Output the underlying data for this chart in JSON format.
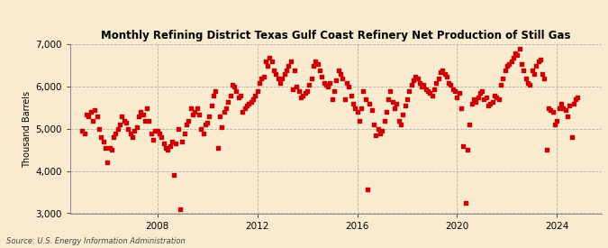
{
  "title": "Monthly Refining District Texas Gulf Coast Refinery Net Production of Still Gas",
  "ylabel": "Thousand Barrels",
  "source": "Source: U.S. Energy Information Administration",
  "background_color": "#faebd0",
  "dot_color": "#cc0000",
  "ylim": [
    3000,
    7000
  ],
  "yticks": [
    3000,
    4000,
    5000,
    6000,
    7000
  ],
  "xlim": [
    2004.5,
    2025.8
  ],
  "xticks_years": [
    2008,
    2012,
    2016,
    2020,
    2024
  ],
  "data": [
    [
      2005.0,
      4950
    ],
    [
      2005.083,
      4900
    ],
    [
      2005.167,
      5350
    ],
    [
      2005.25,
      5300
    ],
    [
      2005.333,
      5400
    ],
    [
      2005.417,
      5200
    ],
    [
      2005.5,
      5450
    ],
    [
      2005.583,
      5300
    ],
    [
      2005.667,
      5000
    ],
    [
      2005.75,
      4800
    ],
    [
      2005.833,
      4700
    ],
    [
      2005.917,
      4550
    ],
    [
      2006.0,
      4200
    ],
    [
      2006.083,
      4550
    ],
    [
      2006.167,
      4500
    ],
    [
      2006.25,
      4800
    ],
    [
      2006.333,
      4900
    ],
    [
      2006.417,
      5000
    ],
    [
      2006.5,
      5100
    ],
    [
      2006.583,
      5300
    ],
    [
      2006.667,
      5200
    ],
    [
      2006.75,
      5150
    ],
    [
      2006.833,
      5000
    ],
    [
      2006.917,
      4900
    ],
    [
      2007.0,
      4800
    ],
    [
      2007.083,
      4950
    ],
    [
      2007.167,
      5050
    ],
    [
      2007.25,
      5300
    ],
    [
      2007.333,
      5400
    ],
    [
      2007.417,
      5350
    ],
    [
      2007.5,
      5200
    ],
    [
      2007.583,
      5500
    ],
    [
      2007.667,
      5200
    ],
    [
      2007.75,
      4900
    ],
    [
      2007.833,
      4750
    ],
    [
      2007.917,
      4950
    ],
    [
      2008.0,
      4950
    ],
    [
      2008.083,
      4900
    ],
    [
      2008.167,
      4800
    ],
    [
      2008.25,
      4650
    ],
    [
      2008.333,
      4550
    ],
    [
      2008.417,
      4500
    ],
    [
      2008.5,
      4600
    ],
    [
      2008.583,
      4700
    ],
    [
      2008.667,
      3900
    ],
    [
      2008.75,
      4650
    ],
    [
      2008.833,
      5000
    ],
    [
      2008.917,
      3100
    ],
    [
      2009.0,
      4700
    ],
    [
      2009.083,
      4900
    ],
    [
      2009.167,
      5100
    ],
    [
      2009.25,
      5200
    ],
    [
      2009.333,
      5500
    ],
    [
      2009.417,
      5350
    ],
    [
      2009.5,
      5400
    ],
    [
      2009.583,
      5500
    ],
    [
      2009.667,
      5350
    ],
    [
      2009.75,
      5000
    ],
    [
      2009.833,
      4900
    ],
    [
      2009.917,
      5100
    ],
    [
      2010.0,
      5150
    ],
    [
      2010.083,
      5300
    ],
    [
      2010.167,
      5550
    ],
    [
      2010.25,
      5800
    ],
    [
      2010.333,
      5900
    ],
    [
      2010.417,
      4550
    ],
    [
      2010.5,
      5300
    ],
    [
      2010.583,
      5050
    ],
    [
      2010.667,
      5400
    ],
    [
      2010.75,
      5500
    ],
    [
      2010.833,
      5650
    ],
    [
      2010.917,
      5800
    ],
    [
      2011.0,
      6050
    ],
    [
      2011.083,
      6000
    ],
    [
      2011.167,
      5900
    ],
    [
      2011.25,
      5750
    ],
    [
      2011.333,
      5800
    ],
    [
      2011.417,
      5400
    ],
    [
      2011.5,
      5500
    ],
    [
      2011.583,
      5550
    ],
    [
      2011.667,
      5600
    ],
    [
      2011.75,
      5650
    ],
    [
      2011.833,
      5700
    ],
    [
      2011.917,
      5800
    ],
    [
      2012.0,
      5900
    ],
    [
      2012.083,
      6100
    ],
    [
      2012.167,
      6200
    ],
    [
      2012.25,
      6250
    ],
    [
      2012.333,
      6600
    ],
    [
      2012.417,
      6500
    ],
    [
      2012.5,
      6700
    ],
    [
      2012.583,
      6600
    ],
    [
      2012.667,
      6400
    ],
    [
      2012.75,
      6300
    ],
    [
      2012.833,
      6200
    ],
    [
      2012.917,
      6100
    ],
    [
      2013.0,
      6200
    ],
    [
      2013.083,
      6300
    ],
    [
      2013.167,
      6400
    ],
    [
      2013.25,
      6500
    ],
    [
      2013.333,
      6600
    ],
    [
      2013.417,
      5950
    ],
    [
      2013.5,
      6400
    ],
    [
      2013.583,
      6000
    ],
    [
      2013.667,
      5900
    ],
    [
      2013.75,
      5750
    ],
    [
      2013.833,
      5800
    ],
    [
      2013.917,
      5850
    ],
    [
      2014.0,
      5900
    ],
    [
      2014.083,
      6050
    ],
    [
      2014.167,
      6200
    ],
    [
      2014.25,
      6500
    ],
    [
      2014.333,
      6600
    ],
    [
      2014.417,
      6550
    ],
    [
      2014.5,
      6400
    ],
    [
      2014.583,
      6250
    ],
    [
      2014.667,
      6100
    ],
    [
      2014.75,
      6050
    ],
    [
      2014.833,
      6000
    ],
    [
      2014.917,
      6100
    ],
    [
      2015.0,
      5700
    ],
    [
      2015.083,
      5900
    ],
    [
      2015.167,
      6150
    ],
    [
      2015.25,
      6400
    ],
    [
      2015.333,
      6300
    ],
    [
      2015.417,
      6200
    ],
    [
      2015.5,
      5700
    ],
    [
      2015.583,
      6100
    ],
    [
      2015.667,
      6000
    ],
    [
      2015.75,
      5800
    ],
    [
      2015.833,
      5600
    ],
    [
      2015.917,
      5500
    ],
    [
      2016.0,
      5400
    ],
    [
      2016.083,
      5200
    ],
    [
      2016.167,
      5500
    ],
    [
      2016.25,
      5900
    ],
    [
      2016.333,
      5700
    ],
    [
      2016.417,
      3560
    ],
    [
      2016.5,
      5600
    ],
    [
      2016.583,
      5450
    ],
    [
      2016.667,
      5100
    ],
    [
      2016.75,
      4850
    ],
    [
      2016.833,
      5000
    ],
    [
      2016.917,
      4900
    ],
    [
      2017.0,
      4950
    ],
    [
      2017.083,
      5200
    ],
    [
      2017.167,
      5400
    ],
    [
      2017.25,
      5700
    ],
    [
      2017.333,
      5900
    ],
    [
      2017.417,
      5650
    ],
    [
      2017.5,
      5500
    ],
    [
      2017.583,
      5600
    ],
    [
      2017.667,
      5200
    ],
    [
      2017.75,
      5100
    ],
    [
      2017.833,
      5350
    ],
    [
      2017.917,
      5550
    ],
    [
      2018.0,
      5700
    ],
    [
      2018.083,
      5900
    ],
    [
      2018.167,
      6050
    ],
    [
      2018.25,
      6150
    ],
    [
      2018.333,
      6250
    ],
    [
      2018.417,
      6200
    ],
    [
      2018.5,
      6100
    ],
    [
      2018.583,
      6000
    ],
    [
      2018.667,
      6050
    ],
    [
      2018.75,
      5950
    ],
    [
      2018.833,
      5900
    ],
    [
      2018.917,
      5850
    ],
    [
      2019.0,
      5800
    ],
    [
      2019.083,
      5950
    ],
    [
      2019.167,
      6100
    ],
    [
      2019.25,
      6200
    ],
    [
      2019.333,
      6350
    ],
    [
      2019.417,
      6400
    ],
    [
      2019.5,
      6300
    ],
    [
      2019.583,
      6250
    ],
    [
      2019.667,
      6100
    ],
    [
      2019.75,
      6050
    ],
    [
      2019.833,
      5950
    ],
    [
      2019.917,
      5900
    ],
    [
      2020.0,
      5750
    ],
    [
      2020.083,
      5850
    ],
    [
      2020.167,
      5500
    ],
    [
      2020.25,
      4600
    ],
    [
      2020.333,
      3250
    ],
    [
      2020.417,
      4500
    ],
    [
      2020.5,
      5100
    ],
    [
      2020.583,
      5600
    ],
    [
      2020.667,
      5700
    ],
    [
      2020.75,
      5650
    ],
    [
      2020.833,
      5750
    ],
    [
      2020.917,
      5850
    ],
    [
      2021.0,
      5900
    ],
    [
      2021.083,
      5700
    ],
    [
      2021.167,
      5750
    ],
    [
      2021.25,
      5550
    ],
    [
      2021.333,
      5600
    ],
    [
      2021.417,
      5650
    ],
    [
      2021.5,
      5800
    ],
    [
      2021.583,
      5750
    ],
    [
      2021.667,
      5700
    ],
    [
      2021.75,
      6050
    ],
    [
      2021.833,
      6200
    ],
    [
      2021.917,
      6400
    ],
    [
      2022.0,
      6500
    ],
    [
      2022.083,
      6550
    ],
    [
      2022.167,
      6600
    ],
    [
      2022.25,
      6700
    ],
    [
      2022.333,
      6800
    ],
    [
      2022.417,
      6750
    ],
    [
      2022.5,
      6900
    ],
    [
      2022.583,
      6550
    ],
    [
      2022.667,
      6400
    ],
    [
      2022.75,
      6200
    ],
    [
      2022.833,
      6100
    ],
    [
      2022.917,
      6050
    ],
    [
      2023.0,
      6400
    ],
    [
      2023.083,
      6300
    ],
    [
      2023.167,
      6500
    ],
    [
      2023.25,
      6600
    ],
    [
      2023.333,
      6650
    ],
    [
      2023.417,
      6300
    ],
    [
      2023.5,
      6200
    ],
    [
      2023.583,
      4500
    ],
    [
      2023.667,
      5500
    ],
    [
      2023.75,
      5450
    ],
    [
      2023.833,
      5400
    ],
    [
      2023.917,
      5100
    ],
    [
      2024.0,
      5200
    ],
    [
      2024.083,
      5500
    ],
    [
      2024.167,
      5600
    ],
    [
      2024.25,
      5500
    ],
    [
      2024.333,
      5450
    ],
    [
      2024.417,
      5300
    ],
    [
      2024.5,
      5550
    ],
    [
      2024.583,
      4800
    ],
    [
      2024.667,
      5600
    ],
    [
      2024.75,
      5700
    ],
    [
      2024.833,
      5750
    ]
  ]
}
